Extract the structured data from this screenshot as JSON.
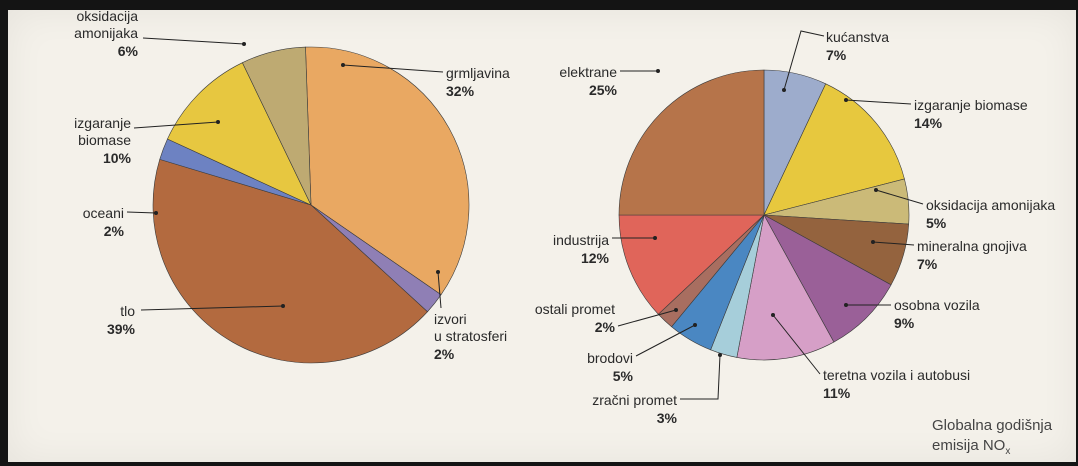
{
  "chart_data": [
    {
      "type": "pie",
      "title": "",
      "start_angle_deg": -2,
      "slices": [
        {
          "label": "grmljavina",
          "value": 32,
          "value_label": "32%",
          "color": "#e9a862"
        },
        {
          "label": "izvori u stratosferi",
          "label_lines": [
            "izvori",
            "u stratosferi"
          ],
          "value": 2,
          "value_label": "2%",
          "color": "#8f7fb5"
        },
        {
          "label": "tlo",
          "value": 39,
          "value_label": "39%",
          "color": "#b36a3f"
        },
        {
          "label": "oceani",
          "value": 2,
          "value_label": "2%",
          "color": "#6d82c2"
        },
        {
          "label": "izgaranje biomase",
          "label_lines": [
            "izgaranje",
            "biomase"
          ],
          "value": 10,
          "value_label": "10%",
          "color": "#e7c740"
        },
        {
          "label": "oksidacija amonijaka",
          "label_lines": [
            "oksidacija",
            "amonijaka"
          ],
          "value": 6,
          "value_label": "6%",
          "color": "#beaa72"
        }
      ]
    },
    {
      "type": "pie",
      "title": "",
      "start_angle_deg": 0,
      "slices": [
        {
          "label": "kućanstva",
          "value": 7,
          "value_label": "7%",
          "color": "#9daccc"
        },
        {
          "label": "izgaranje biomase",
          "value": 14,
          "value_label": "14%",
          "color": "#e7c83e"
        },
        {
          "label": "oksidacija amonijaka",
          "value": 5,
          "value_label": "5%",
          "color": "#cbba78"
        },
        {
          "label": "mineralna gnojiva",
          "value": 7,
          "value_label": "7%",
          "color": "#94633e"
        },
        {
          "label": "osobna vozila",
          "value": 9,
          "value_label": "9%",
          "color": "#9a6098"
        },
        {
          "label": "teretna vozila i autobusi",
          "value": 11,
          "value_label": "11%",
          "color": "#d69fc7"
        },
        {
          "label": "zračni promet",
          "value": 3,
          "value_label": "3%",
          "color": "#a6ceda"
        },
        {
          "label": "brodovi",
          "value": 5,
          "value_label": "5%",
          "color": "#4a87c2"
        },
        {
          "label": "ostali promet",
          "value": 2,
          "value_label": "2%",
          "color": "#a86e60"
        },
        {
          "label": "industrija",
          "value": 12,
          "value_label": "12%",
          "color": "#e0655a"
        },
        {
          "label": "elektrane",
          "value": 25,
          "value_label": "25%",
          "color": "#b6744a"
        }
      ]
    }
  ],
  "caption": {
    "line1": "Globalna godišnja",
    "line2_prefix": "emisija NO",
    "line2_sub": "x"
  }
}
